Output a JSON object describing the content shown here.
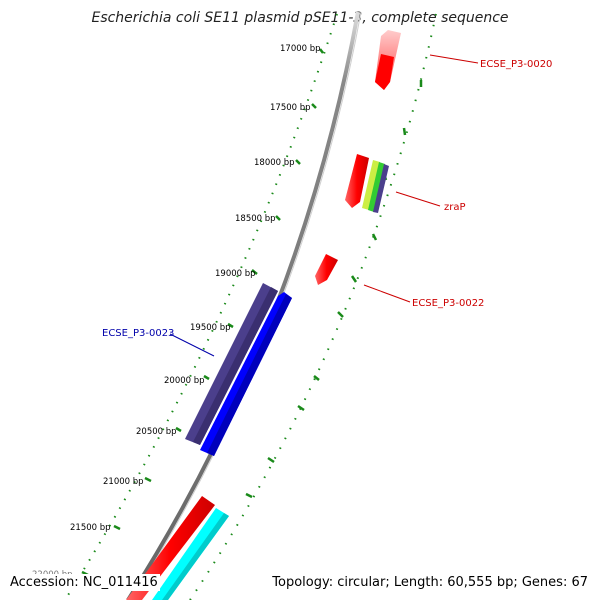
{
  "title": "Escherichia coli SE11 plasmid pSE11-3, complete sequence",
  "footer": {
    "accession_label": "Accession:",
    "accession": "NC_011416",
    "topology_text": "Topology: circular; Length: 60,555 bp; Genes: 67"
  },
  "colors": {
    "backbone": "#888888",
    "tick_dots": "#1a8a1a",
    "feature_red": "#ff0000",
    "feature_blue": "#0000ff",
    "feature_slate": "#4b3f8c",
    "feature_cyan": "#00ffff",
    "feature_green": "#33cc33",
    "feature_lightgreen": "#99ee55",
    "label_red": "#cc0000",
    "label_blue": "#0000aa"
  },
  "scale_ticks": [
    {
      "label": "17000 bp"
    },
    {
      "label": "17500 bp"
    },
    {
      "label": "18000 bp"
    },
    {
      "label": "18500 bp"
    },
    {
      "label": "19000 bp"
    },
    {
      "label": "19500 bp"
    },
    {
      "label": "20000 bp"
    },
    {
      "label": "20500 bp"
    },
    {
      "label": "21000 bp"
    },
    {
      "label": "21500 bp"
    },
    {
      "label": "22000 bp"
    }
  ],
  "gene_labels": [
    {
      "text": "ECSE_P3-0020",
      "color": "#cc0000"
    },
    {
      "text": "zraP",
      "color": "#cc0000"
    },
    {
      "text": "ECSE_P3-0022",
      "color": "#cc0000"
    },
    {
      "text": "ECSE_P3-0023",
      "color": "#0000aa"
    }
  ]
}
